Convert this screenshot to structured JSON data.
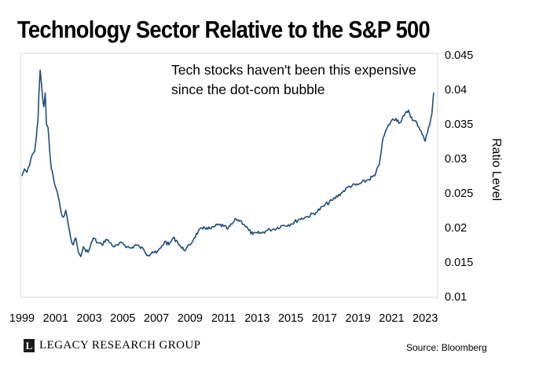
{
  "chart_data": {
    "type": "line",
    "title": "Technology Sector Relative to the S&P 500",
    "ylabel": "Ratio Level",
    "xlabel": "",
    "annotation": [
      "Tech stocks haven't been this expensive",
      "since the dot-com bubble"
    ],
    "x_tick_labels": [
      "1999",
      "2001",
      "2003",
      "2005",
      "2007",
      "2009",
      "2011",
      "2013",
      "2015",
      "2017",
      "2019",
      "2021",
      "2023"
    ],
    "y_tick_labels": [
      "0.01",
      "0.015",
      "0.02",
      "0.025",
      "0.03",
      "0.035",
      "0.04",
      "0.045"
    ],
    "xlim": [
      1999,
      2023.6
    ],
    "ylim": [
      0.01,
      0.045
    ],
    "grid": false,
    "line_color": "#1f4e79",
    "series": [
      {
        "x": [
          1999.0,
          1999.15,
          1999.3,
          1999.45,
          1999.6,
          1999.75,
          1999.85,
          1999.95,
          2000.0,
          2000.08,
          2000.15,
          2000.22,
          2000.3,
          2000.38,
          2000.45,
          2000.55,
          2000.65,
          2000.75,
          2000.85,
          2000.95,
          2001.05,
          2001.15,
          2001.3,
          2001.45,
          2001.6,
          2001.75,
          2001.9,
          2002.05,
          2002.2,
          2002.35,
          2002.5,
          2002.65,
          2002.8,
          2003.0,
          2003.25,
          2003.5,
          2003.75,
          2004.0,
          2004.25,
          2004.5,
          2004.75,
          2005.0,
          2005.25,
          2005.5,
          2005.75,
          2006.0,
          2006.25,
          2006.5,
          2006.75,
          2007.0,
          2007.25,
          2007.5,
          2007.75,
          2008.0,
          2008.25,
          2008.5,
          2008.75,
          2009.0,
          2009.25,
          2009.5,
          2009.75,
          2010.0,
          2010.25,
          2010.5,
          2010.75,
          2011.0,
          2011.25,
          2011.5,
          2011.75,
          2012.0,
          2012.25,
          2012.5,
          2012.75,
          2013.0,
          2013.25,
          2013.5,
          2013.75,
          2014.0,
          2014.5,
          2015.0,
          2015.5,
          2016.0,
          2016.5,
          2017.0,
          2017.5,
          2018.0,
          2018.5,
          2019.0,
          2019.5,
          2020.0,
          2020.25,
          2020.5,
          2020.75,
          2021.0,
          2021.25,
          2021.5,
          2021.75,
          2022.0,
          2022.25,
          2022.5,
          2022.75,
          2023.0,
          2023.2,
          2023.4,
          2023.5
        ],
        "y": [
          0.0275,
          0.0285,
          0.028,
          0.029,
          0.0305,
          0.031,
          0.033,
          0.0355,
          0.039,
          0.0428,
          0.041,
          0.039,
          0.0375,
          0.0395,
          0.035,
          0.0345,
          0.031,
          0.0285,
          0.0275,
          0.0262,
          0.0255,
          0.0245,
          0.0225,
          0.0215,
          0.0225,
          0.0205,
          0.0185,
          0.0175,
          0.0185,
          0.0165,
          0.0158,
          0.0172,
          0.0165,
          0.0168,
          0.0185,
          0.0178,
          0.0175,
          0.0183,
          0.0178,
          0.0172,
          0.0175,
          0.0178,
          0.0172,
          0.017,
          0.0175,
          0.0172,
          0.0168,
          0.016,
          0.0165,
          0.0163,
          0.017,
          0.018,
          0.0175,
          0.0185,
          0.018,
          0.017,
          0.0168,
          0.0175,
          0.0185,
          0.0195,
          0.0198,
          0.02,
          0.0198,
          0.0202,
          0.0204,
          0.0202,
          0.0198,
          0.0205,
          0.0212,
          0.021,
          0.0204,
          0.0196,
          0.019,
          0.0192,
          0.0192,
          0.0195,
          0.0197,
          0.0198,
          0.0203,
          0.0205,
          0.0212,
          0.0216,
          0.0222,
          0.0232,
          0.024,
          0.025,
          0.026,
          0.0262,
          0.0268,
          0.0275,
          0.029,
          0.033,
          0.0345,
          0.0355,
          0.0358,
          0.0352,
          0.0362,
          0.037,
          0.0355,
          0.0352,
          0.034,
          0.0325,
          0.0345,
          0.0365,
          0.0395
        ]
      }
    ]
  },
  "footer": {
    "logo_letter": "L",
    "brand": "LEGACY RESEARCH GROUP",
    "source": "Source: Bloomberg"
  }
}
